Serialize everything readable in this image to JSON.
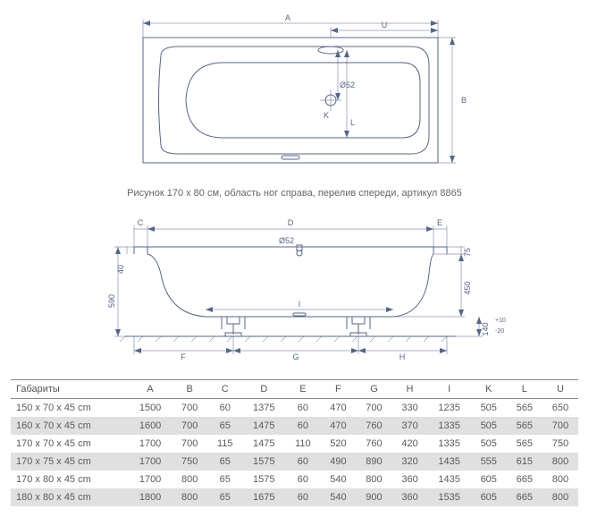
{
  "colors": {
    "line": "#55658a",
    "text": "#666666",
    "table_border": "#888888",
    "shade": "#e0e0e0",
    "bg": "#ffffff"
  },
  "top_diagram": {
    "labels": {
      "A": "A",
      "U": "U",
      "B": "B",
      "L": "L",
      "K": "K",
      "drain": "Ø52"
    }
  },
  "caption": "Рисунок 170 x 80 см, область ног справа, перелив спереди, артикул 8865",
  "side_diagram": {
    "labels": {
      "C": "C",
      "D": "D",
      "E": "E",
      "F": "F",
      "G": "G",
      "H": "H",
      "I": "I",
      "h590": "590",
      "h40": "40",
      "h450": "450",
      "h75": "75",
      "htol": "140",
      "htol_plus": "+10",
      "htol_minus": "-20",
      "drain": "Ø52"
    }
  },
  "table": {
    "title": "Габариты",
    "columns": [
      "A",
      "B",
      "C",
      "D",
      "E",
      "F",
      "G",
      "H",
      "I",
      "K",
      "L",
      "U"
    ],
    "rows": [
      {
        "label": "150 x 70 x 45 cm",
        "vals": [
          "1500",
          "700",
          "60",
          "1375",
          "60",
          "470",
          "700",
          "330",
          "1235",
          "505",
          "565",
          "650"
        ],
        "shade": false
      },
      {
        "label": "160 x 70 x 45 cm",
        "vals": [
          "1600",
          "700",
          "65",
          "1475",
          "60",
          "470",
          "760",
          "370",
          "1335",
          "505",
          "565",
          "700"
        ],
        "shade": true
      },
      {
        "label": "170 x 70 x 45 cm",
        "vals": [
          "1700",
          "700",
          "115",
          "1475",
          "110",
          "520",
          "760",
          "420",
          "1335",
          "505",
          "565",
          "750"
        ],
        "shade": false
      },
      {
        "label": "170 x 75 x 45 cm",
        "vals": [
          "1700",
          "750",
          "65",
          "1575",
          "60",
          "490",
          "890",
          "320",
          "1435",
          "555",
          "615",
          "800"
        ],
        "shade": true
      },
      {
        "label": "170 x 80 x 45 cm",
        "vals": [
          "1700",
          "800",
          "65",
          "1575",
          "60",
          "540",
          "800",
          "360",
          "1435",
          "605",
          "665",
          "800"
        ],
        "shade": false
      },
      {
        "label": "180 x 80 x 45 cm",
        "vals": [
          "1800",
          "800",
          "65",
          "1675",
          "60",
          "540",
          "900",
          "360",
          "1535",
          "605",
          "665",
          "800"
        ],
        "shade": true
      }
    ]
  }
}
